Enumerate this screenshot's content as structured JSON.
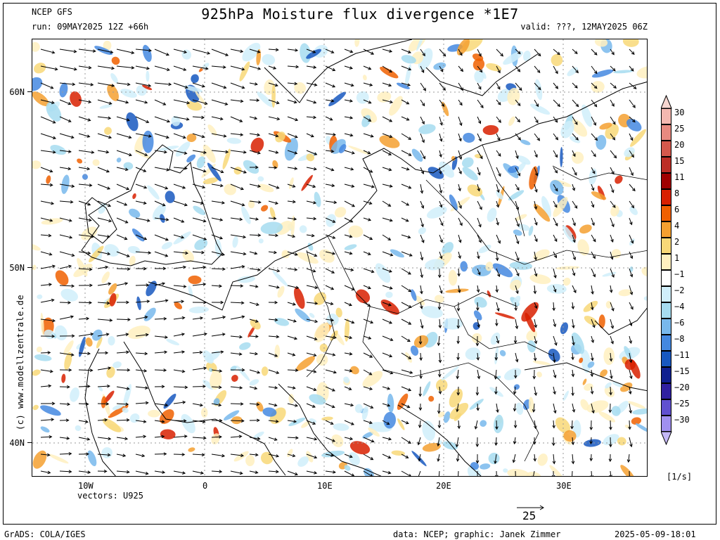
{
  "header": {
    "model": "NCEP GFS",
    "title": "925hPa Moisture flux divergence *1E7",
    "run": "run: 09MAY2025 12Z +66h",
    "valid": "valid: ???, 12MAY2025 06Z"
  },
  "axes": {
    "lat_labels": [
      "60N",
      "50N",
      "40N"
    ],
    "lon_labels": [
      "10W",
      "0",
      "10E",
      "20E",
      "30E"
    ]
  },
  "vectors_label": "vectors: U925",
  "ref_vector": {
    "value": "25"
  },
  "watermark": "(c) www.modellzentrale.de",
  "colorbar": {
    "unit": "[1/s]",
    "labels": [
      "30",
      "25",
      "20",
      "15",
      "11",
      "8",
      "6",
      "4",
      "2",
      "1",
      "-1",
      "-2",
      "-4",
      "-6",
      "-8",
      "-11",
      "-15",
      "-20",
      "-25",
      "-30"
    ],
    "colors": [
      "#f4b8b0",
      "#e88a80",
      "#d4584c",
      "#bc2e26",
      "#a00000",
      "#d82000",
      "#f06000",
      "#f5a030",
      "#f8d878",
      "#fff0c0",
      "#ffffff",
      "#d0eefa",
      "#a6dcf0",
      "#78b8ec",
      "#4488e0",
      "#1858c0",
      "#102090",
      "#3020a0",
      "#6050d0",
      "#a090f0"
    ]
  },
  "footer": {
    "left": "GrADS: COLA/IGES",
    "right_credit": "data: NCEP; graphic: Janek Zimmer",
    "timestamp": "2025-05-09-18:01"
  },
  "colors": {
    "land_border": "#000000",
    "vector": "#000000",
    "grid": "#9a9a9a"
  }
}
